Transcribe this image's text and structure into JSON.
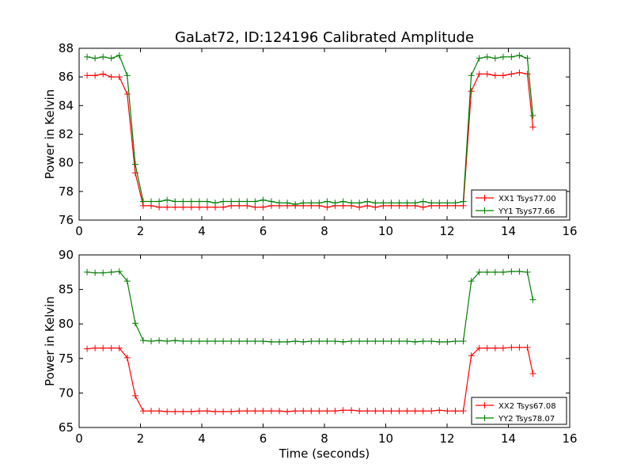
{
  "title": "GaLat72, ID:124196 Calibrated Amplitude",
  "colors": {
    "red": "#ff0000",
    "green": "#008000"
  },
  "chart_data": [
    {
      "type": "line",
      "title": "GaLat72, ID:124196 Calibrated Amplitude",
      "xlabel": "",
      "ylabel": "Power in Kelvin",
      "xlim": [
        0,
        16
      ],
      "ylim": [
        76,
        88
      ],
      "xticks": [
        0,
        2,
        4,
        6,
        8,
        10,
        12,
        14,
        16
      ],
      "yticks": [
        76,
        78,
        80,
        82,
        84,
        86,
        88
      ],
      "grid": false,
      "legend_position": "bottom-right",
      "series": [
        {
          "name": "XX1 Tsys77.00",
          "color": "#ff0000",
          "x": [
            0.26,
            0.52,
            0.78,
            1.05,
            1.31,
            1.57,
            1.83,
            2.09,
            2.35,
            2.61,
            2.87,
            3.13,
            3.39,
            3.66,
            3.92,
            4.18,
            4.44,
            4.7,
            4.96,
            5.22,
            5.48,
            5.74,
            6.0,
            6.27,
            6.53,
            6.79,
            7.05,
            7.31,
            7.57,
            7.83,
            8.09,
            8.35,
            8.61,
            8.88,
            9.14,
            9.4,
            9.66,
            9.92,
            10.18,
            10.44,
            10.7,
            10.96,
            11.22,
            11.49,
            11.75,
            12.01,
            12.27,
            12.53,
            12.79,
            13.05,
            13.31,
            13.57,
            13.83,
            14.1,
            14.36,
            14.62,
            14.8
          ],
          "y": [
            86.1,
            86.1,
            86.2,
            86.0,
            86.0,
            84.8,
            79.3,
            77.0,
            77.0,
            76.9,
            76.9,
            76.9,
            76.9,
            76.9,
            76.9,
            76.9,
            76.9,
            76.9,
            77.0,
            77.0,
            77.0,
            76.9,
            76.9,
            77.0,
            77.0,
            77.0,
            77.0,
            77.0,
            77.0,
            77.0,
            76.9,
            77.0,
            77.0,
            77.0,
            76.9,
            77.0,
            76.9,
            77.0,
            77.0,
            77.0,
            77.0,
            77.0,
            76.9,
            77.0,
            77.0,
            77.0,
            77.0,
            77.0,
            85.0,
            86.2,
            86.2,
            86.1,
            86.1,
            86.2,
            86.3,
            86.2,
            82.5
          ]
        },
        {
          "name": "YY1 Tsys77.66",
          "color": "#008000",
          "x": [
            0.26,
            0.52,
            0.78,
            1.05,
            1.31,
            1.57,
            1.83,
            2.09,
            2.35,
            2.61,
            2.87,
            3.13,
            3.39,
            3.66,
            3.92,
            4.18,
            4.44,
            4.7,
            4.96,
            5.22,
            5.48,
            5.74,
            6.0,
            6.27,
            6.53,
            6.79,
            7.05,
            7.31,
            7.57,
            7.83,
            8.09,
            8.35,
            8.61,
            8.88,
            9.14,
            9.4,
            9.66,
            9.92,
            10.18,
            10.44,
            10.7,
            10.96,
            11.22,
            11.49,
            11.75,
            12.01,
            12.27,
            12.53,
            12.79,
            13.05,
            13.31,
            13.57,
            13.83,
            14.1,
            14.36,
            14.62,
            14.8
          ],
          "y": [
            87.4,
            87.3,
            87.4,
            87.3,
            87.5,
            86.1,
            79.9,
            77.3,
            77.3,
            77.3,
            77.4,
            77.3,
            77.3,
            77.3,
            77.3,
            77.3,
            77.2,
            77.3,
            77.3,
            77.3,
            77.3,
            77.3,
            77.4,
            77.3,
            77.2,
            77.2,
            77.1,
            77.2,
            77.2,
            77.2,
            77.3,
            77.2,
            77.3,
            77.2,
            77.2,
            77.3,
            77.2,
            77.2,
            77.2,
            77.2,
            77.2,
            77.2,
            77.3,
            77.2,
            77.2,
            77.2,
            77.2,
            77.3,
            86.1,
            87.3,
            87.4,
            87.3,
            87.4,
            87.4,
            87.5,
            87.3,
            83.3
          ]
        }
      ]
    },
    {
      "type": "line",
      "title": "",
      "xlabel": "Time (seconds)",
      "ylabel": "Power in Kelvin",
      "xlim": [
        0,
        16
      ],
      "ylim": [
        65,
        90
      ],
      "xticks": [
        0,
        2,
        4,
        6,
        8,
        10,
        12,
        14,
        16
      ],
      "yticks": [
        65,
        70,
        75,
        80,
        85,
        90
      ],
      "grid": false,
      "legend_position": "bottom-right",
      "series": [
        {
          "name": "XX2 Tsys67.08",
          "color": "#ff0000",
          "x": [
            0.26,
            0.52,
            0.78,
            1.05,
            1.31,
            1.57,
            1.83,
            2.09,
            2.35,
            2.61,
            2.87,
            3.13,
            3.39,
            3.66,
            3.92,
            4.18,
            4.44,
            4.7,
            4.96,
            5.22,
            5.48,
            5.74,
            6.0,
            6.27,
            6.53,
            6.79,
            7.05,
            7.31,
            7.57,
            7.83,
            8.09,
            8.35,
            8.61,
            8.88,
            9.14,
            9.4,
            9.66,
            9.92,
            10.18,
            10.44,
            10.7,
            10.96,
            11.22,
            11.49,
            11.75,
            12.01,
            12.27,
            12.53,
            12.79,
            13.05,
            13.31,
            13.57,
            13.83,
            14.1,
            14.36,
            14.62,
            14.8
          ],
          "y": [
            76.4,
            76.5,
            76.5,
            76.5,
            76.5,
            75.1,
            69.6,
            67.4,
            67.4,
            67.4,
            67.3,
            67.3,
            67.3,
            67.3,
            67.4,
            67.4,
            67.3,
            67.3,
            67.3,
            67.4,
            67.4,
            67.4,
            67.4,
            67.4,
            67.4,
            67.3,
            67.4,
            67.4,
            67.4,
            67.4,
            67.4,
            67.4,
            67.5,
            67.5,
            67.4,
            67.4,
            67.4,
            67.4,
            67.4,
            67.4,
            67.4,
            67.4,
            67.4,
            67.4,
            67.5,
            67.4,
            67.4,
            67.4,
            75.4,
            76.5,
            76.5,
            76.5,
            76.5,
            76.6,
            76.6,
            76.6,
            72.8
          ]
        },
        {
          "name": "YY2 Tsys78.07",
          "color": "#008000",
          "x": [
            0.26,
            0.52,
            0.78,
            1.05,
            1.31,
            1.57,
            1.83,
            2.09,
            2.35,
            2.61,
            2.87,
            3.13,
            3.39,
            3.66,
            3.92,
            4.18,
            4.44,
            4.7,
            4.96,
            5.22,
            5.48,
            5.74,
            6.0,
            6.27,
            6.53,
            6.79,
            7.05,
            7.31,
            7.57,
            7.83,
            8.09,
            8.35,
            8.61,
            8.88,
            9.14,
            9.4,
            9.66,
            9.92,
            10.18,
            10.44,
            10.7,
            10.96,
            11.22,
            11.49,
            11.75,
            12.01,
            12.27,
            12.53,
            12.79,
            13.05,
            13.31,
            13.57,
            13.83,
            14.1,
            14.36,
            14.62,
            14.8
          ],
          "y": [
            87.5,
            87.4,
            87.4,
            87.5,
            87.6,
            86.2,
            80.1,
            77.6,
            77.5,
            77.6,
            77.5,
            77.6,
            77.5,
            77.5,
            77.5,
            77.5,
            77.5,
            77.5,
            77.5,
            77.5,
            77.5,
            77.5,
            77.5,
            77.4,
            77.4,
            77.4,
            77.5,
            77.4,
            77.5,
            77.5,
            77.5,
            77.5,
            77.4,
            77.5,
            77.5,
            77.5,
            77.5,
            77.5,
            77.5,
            77.5,
            77.5,
            77.4,
            77.5,
            77.5,
            77.4,
            77.4,
            77.5,
            77.5,
            86.2,
            87.5,
            87.5,
            87.5,
            87.5,
            87.6,
            87.6,
            87.5,
            83.5
          ]
        }
      ]
    }
  ]
}
